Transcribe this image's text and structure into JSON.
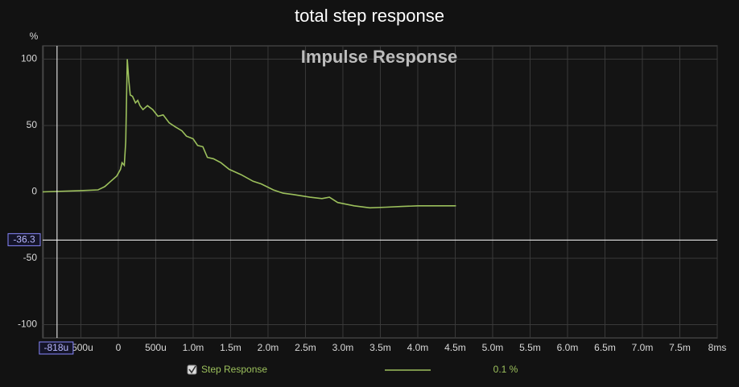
{
  "chart_data": {
    "type": "line",
    "title": "total step response",
    "annotation": "Impulse Response",
    "y_unit": "%",
    "x": [
      -1.01,
      -0.5,
      -0.27,
      -0.18,
      -0.1,
      -0.02,
      0.03,
      0.05,
      0.08,
      0.1,
      0.12,
      0.14,
      0.16,
      0.19,
      0.23,
      0.26,
      0.29,
      0.33,
      0.39,
      0.46,
      0.53,
      0.6,
      0.68,
      0.76,
      0.85,
      0.91,
      1.0,
      1.06,
      1.13,
      1.19,
      1.27,
      1.37,
      1.48,
      1.64,
      1.8,
      1.91,
      2.07,
      2.2,
      2.34,
      2.45,
      2.56,
      2.72,
      2.82,
      2.93,
      3.15,
      3.36,
      3.58,
      3.79,
      4.0,
      4.51
    ],
    "series": [
      {
        "name": "Step Response",
        "color": "#9cc05c",
        "values": [
          0,
          1,
          1.5,
          4,
          8,
          12,
          17,
          22,
          20,
          38,
          100,
          84,
          73,
          72,
          67,
          69,
          65,
          62,
          65,
          62,
          57,
          58,
          52,
          49,
          46,
          42,
          40,
          35,
          34,
          26,
          25,
          22,
          17,
          13,
          8,
          6,
          1.5,
          -1,
          -2,
          -3,
          -4,
          -5,
          -4,
          -8,
          -10.5,
          -12,
          -11.5,
          -11,
          -10.5,
          -10.5
        ]
      }
    ],
    "xlim": [
      -1.01,
      8
    ],
    "ylim": [
      -110,
      110
    ],
    "xticks": [
      -1,
      {
        "value": -0.5,
        "label": "-500u"
      },
      0,
      {
        "value": 0.5,
        "label": "500u"
      },
      {
        "value": 1,
        "label": "1.0m"
      },
      {
        "value": 1.5,
        "label": "1.5m"
      },
      {
        "value": 2,
        "label": "2.0m"
      },
      {
        "value": 2.5,
        "label": "2.5m"
      },
      {
        "value": 3,
        "label": "3.0m"
      },
      {
        "value": 3.5,
        "label": "3.5m"
      },
      {
        "value": 4,
        "label": "4.0m"
      },
      {
        "value": 4.5,
        "label": "4.5m"
      },
      {
        "value": 5,
        "label": "5.0m"
      },
      {
        "value": 5.5,
        "label": "5.5m"
      },
      {
        "value": 6,
        "label": "6.0m"
      },
      {
        "value": 6.5,
        "label": "6.5m"
      },
      {
        "value": 7,
        "label": "7.0m"
      },
      {
        "value": 7.5,
        "label": "7.5m"
      },
      {
        "value": 8,
        "label": "8ms"
      }
    ],
    "yticks": [
      100,
      50,
      0,
      -50,
      -100
    ],
    "grid": true,
    "cursor": {
      "x": {
        "value": -0.818,
        "label": "-818u"
      },
      "y": -36.3
    },
    "legend_note": "0.1 %"
  }
}
